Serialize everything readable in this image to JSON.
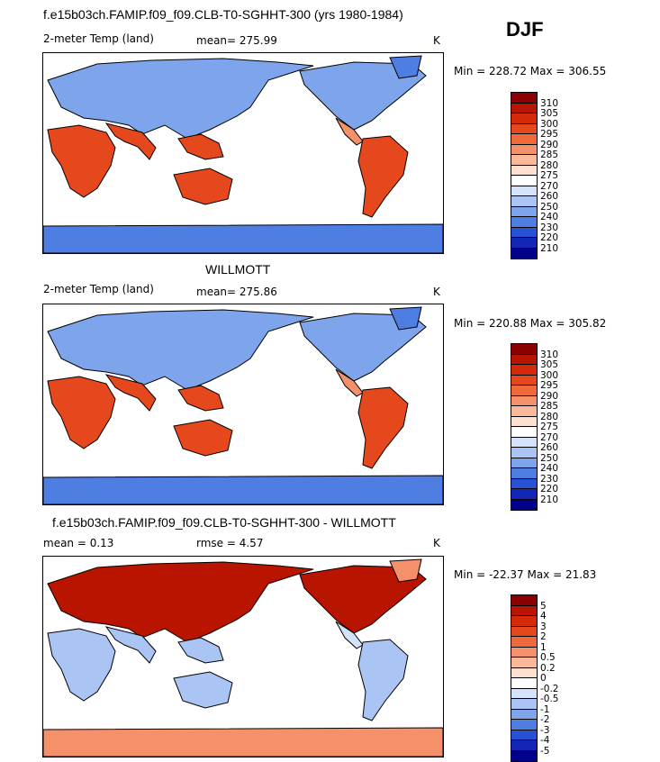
{
  "season": "DJF",
  "panels": [
    {
      "title": "f.e15b03ch.FAMIP.f09_f09.CLB-T0-SGHHT-300 (yrs 1980-1984)",
      "variable": "2-meter Temp (land)",
      "stat1": "mean= 275.99",
      "stat2": "",
      "units": "K",
      "minmax": "Min = 228.72 Max = 306.55",
      "mode": "abs"
    },
    {
      "title": "WILLMOTT",
      "variable": "2-meter Temp (land)",
      "stat1": "mean= 275.86",
      "stat2": "",
      "units": "K",
      "minmax": "Min = 220.88 Max = 305.82",
      "mode": "abs"
    },
    {
      "title": "f.e15b03ch.FAMIP.f09_f09.CLB-T0-SGHHT-300 - WILLMOTT",
      "variable": "",
      "stat1": "mean = 0.13",
      "stat2": "rmse = 4.57",
      "units": "K",
      "minmax": "Min = -22.37 Max = 21.83",
      "mode": "diff"
    }
  ],
  "colorbars": {
    "abs": {
      "labels": [
        "310",
        "305",
        "300",
        "295",
        "290",
        "285",
        "280",
        "275",
        "270",
        "260",
        "250",
        "240",
        "230",
        "220",
        "210"
      ],
      "colors": [
        "#8b0000",
        "#b81400",
        "#d42a0a",
        "#e5481c",
        "#ee6a3a",
        "#f4906a",
        "#f9b99a",
        "#fde0cf",
        "#ffffff",
        "#d4e2fb",
        "#aac5f4",
        "#7ea4ec",
        "#4f7ee2",
        "#2752d6",
        "#1326b8",
        "#00008b"
      ]
    },
    "diff": {
      "labels": [
        "5",
        "4",
        "3",
        "2",
        "1",
        "0.5",
        "0.2",
        "0",
        "-0.2",
        "-0.5",
        "-1",
        "-2",
        "-3",
        "-4",
        "-5"
      ],
      "colors": [
        "#8b0000",
        "#b81400",
        "#d42a0a",
        "#e5481c",
        "#ee6a3a",
        "#f4906a",
        "#f9b99a",
        "#fde0cf",
        "#ffffff",
        "#d4e2fb",
        "#aac5f4",
        "#7ea4ec",
        "#4f7ee2",
        "#2752d6",
        "#1326b8",
        "#00008b"
      ]
    }
  },
  "chart_data": [
    {
      "type": "heatmap",
      "title": "f.e15b03ch.FAMIP.f09_f09.CLB-T0-SGHHT-300 (yrs 1980-1984)",
      "variable": "2-meter Temp (land)",
      "units": "K",
      "mean": 275.99,
      "min": 228.72,
      "max": 306.55,
      "levels": [
        210,
        220,
        230,
        240,
        250,
        260,
        270,
        275,
        280,
        285,
        290,
        295,
        300,
        305,
        310
      ]
    },
    {
      "type": "heatmap",
      "title": "WILLMOTT",
      "variable": "2-meter Temp (land)",
      "units": "K",
      "mean": 275.86,
      "min": 220.88,
      "max": 305.82,
      "levels": [
        210,
        220,
        230,
        240,
        250,
        260,
        270,
        275,
        280,
        285,
        290,
        295,
        300,
        305,
        310
      ]
    },
    {
      "type": "heatmap",
      "title": "f.e15b03ch.FAMIP.f09_f09.CLB-T0-SGHHT-300 - WILLMOTT",
      "units": "K",
      "mean": 0.13,
      "rmse": 4.57,
      "min": -22.37,
      "max": 21.83,
      "levels": [
        -5,
        -4,
        -3,
        -2,
        -1,
        -0.5,
        -0.2,
        0,
        0.2,
        0.5,
        1,
        2,
        3,
        4,
        5
      ]
    }
  ]
}
